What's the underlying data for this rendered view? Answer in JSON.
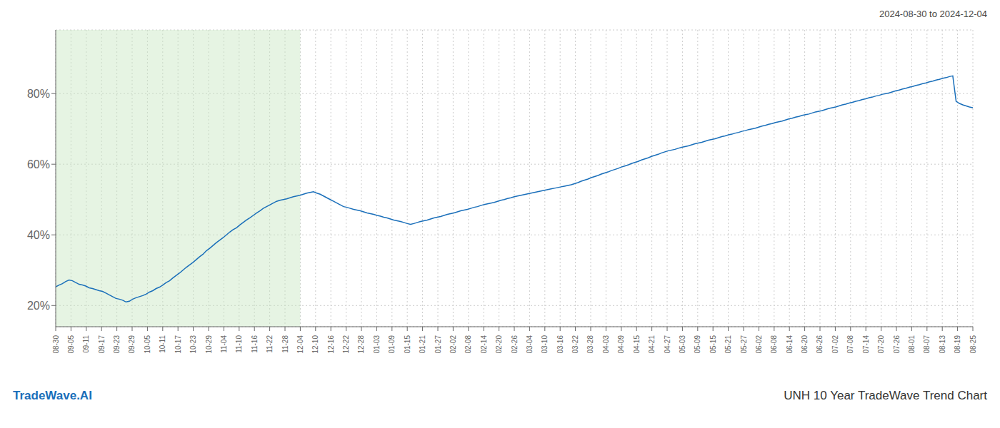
{
  "chart_data": {
    "type": "line",
    "title": "UNH 10 Year TradeWave Trend Chart",
    "subtitle": "2024-08-30 to 2024-12-04",
    "annotations": [
      "TradeWave.AI"
    ],
    "color": "#1a6fba",
    "grid": true,
    "x": [
      0,
      1,
      2,
      3,
      4,
      5,
      6,
      7,
      8,
      9,
      10,
      11,
      12,
      13,
      14,
      15,
      16,
      17,
      18,
      19,
      20,
      21,
      22,
      23,
      24,
      25,
      26,
      27,
      28,
      29,
      30,
      31,
      32,
      33,
      34,
      35,
      36,
      37,
      38,
      39,
      40,
      41,
      42,
      43,
      44,
      45,
      46,
      47,
      48,
      49,
      50,
      51,
      52,
      53,
      54,
      55,
      56,
      57,
      58,
      59,
      60,
      61,
      62,
      63,
      64,
      65,
      66,
      67,
      68,
      69,
      70,
      71,
      72,
      73,
      74,
      75,
      76,
      77,
      78,
      79,
      80,
      81,
      82,
      83,
      84,
      85,
      86,
      87,
      88,
      89,
      90,
      91,
      92,
      93,
      94,
      95,
      96,
      97,
      98,
      99,
      100,
      101,
      102,
      103,
      104,
      105,
      106,
      107,
      108,
      109,
      110,
      111,
      112,
      113,
      114,
      115,
      116,
      117,
      118,
      119,
      120,
      121,
      122,
      123,
      124,
      125,
      126,
      127,
      128,
      129,
      130,
      131,
      132,
      133,
      134,
      135,
      136,
      137,
      138,
      139,
      140,
      141,
      142,
      143,
      144,
      145,
      146,
      147,
      148,
      149,
      150,
      151,
      152,
      153,
      154,
      155,
      156,
      157,
      158,
      159,
      160,
      161,
      162,
      163,
      164,
      165,
      166,
      167,
      168,
      169,
      170,
      171,
      172,
      173,
      174,
      175,
      176,
      177,
      178,
      179,
      180,
      181,
      182,
      183,
      184,
      185,
      186,
      187,
      188,
      189,
      190,
      191,
      192,
      193,
      194,
      195,
      196,
      197,
      198,
      199,
      200,
      201,
      202,
      203,
      204,
      205,
      206,
      207,
      208,
      209,
      210,
      211,
      212,
      213,
      214,
      215,
      216,
      217,
      218,
      219,
      220,
      221,
      222,
      223,
      224,
      225,
      226,
      227,
      228,
      229,
      230,
      231,
      232,
      233,
      234,
      235,
      236,
      237,
      238,
      239,
      240,
      241,
      242,
      243,
      244,
      245,
      246,
      247,
      248,
      249,
      250,
      251,
      252,
      253,
      254,
      255,
      256,
      257,
      258,
      259,
      260,
      261,
      262,
      263,
      264,
      265,
      266,
      267,
      268,
      269,
      270,
      271,
      272,
      273,
      274
    ],
    "values": [
      0.253,
      0.258,
      0.262,
      0.268,
      0.272,
      0.27,
      0.265,
      0.26,
      0.258,
      0.255,
      0.25,
      0.248,
      0.245,
      0.242,
      0.24,
      0.235,
      0.23,
      0.225,
      0.22,
      0.218,
      0.215,
      0.21,
      0.212,
      0.218,
      0.222,
      0.225,
      0.228,
      0.232,
      0.238,
      0.242,
      0.248,
      0.252,
      0.258,
      0.265,
      0.27,
      0.278,
      0.285,
      0.292,
      0.3,
      0.308,
      0.315,
      0.322,
      0.33,
      0.338,
      0.345,
      0.355,
      0.362,
      0.37,
      0.378,
      0.385,
      0.392,
      0.4,
      0.408,
      0.415,
      0.42,
      0.428,
      0.435,
      0.442,
      0.448,
      0.455,
      0.462,
      0.468,
      0.475,
      0.48,
      0.485,
      0.49,
      0.495,
      0.498,
      0.5,
      0.502,
      0.505,
      0.508,
      0.51,
      0.512,
      0.515,
      0.518,
      0.52,
      0.522,
      0.518,
      0.515,
      0.51,
      0.505,
      0.5,
      0.495,
      0.49,
      0.485,
      0.48,
      0.478,
      0.475,
      0.472,
      0.47,
      0.468,
      0.465,
      0.462,
      0.46,
      0.458,
      0.455,
      0.453,
      0.45,
      0.448,
      0.445,
      0.442,
      0.44,
      0.438,
      0.435,
      0.432,
      0.43,
      0.432,
      0.435,
      0.438,
      0.44,
      0.442,
      0.445,
      0.448,
      0.45,
      0.452,
      0.455,
      0.458,
      0.46,
      0.462,
      0.465,
      0.468,
      0.47,
      0.472,
      0.475,
      0.478,
      0.48,
      0.483,
      0.486,
      0.488,
      0.49,
      0.492,
      0.495,
      0.498,
      0.5,
      0.503,
      0.505,
      0.508,
      0.51,
      0.512,
      0.514,
      0.516,
      0.518,
      0.52,
      0.522,
      0.524,
      0.526,
      0.528,
      0.53,
      0.532,
      0.534,
      0.536,
      0.538,
      0.54,
      0.542,
      0.545,
      0.548,
      0.552,
      0.555,
      0.558,
      0.562,
      0.565,
      0.568,
      0.572,
      0.575,
      0.578,
      0.582,
      0.585,
      0.588,
      0.592,
      0.595,
      0.598,
      0.602,
      0.605,
      0.608,
      0.612,
      0.615,
      0.618,
      0.622,
      0.625,
      0.628,
      0.632,
      0.635,
      0.638,
      0.64,
      0.642,
      0.645,
      0.648,
      0.65,
      0.652,
      0.655,
      0.658,
      0.66,
      0.662,
      0.665,
      0.668,
      0.67,
      0.672,
      0.675,
      0.678,
      0.68,
      0.683,
      0.685,
      0.688,
      0.69,
      0.693,
      0.695,
      0.698,
      0.7,
      0.702,
      0.705,
      0.708,
      0.71,
      0.713,
      0.715,
      0.718,
      0.72,
      0.722,
      0.725,
      0.728,
      0.73,
      0.733,
      0.735,
      0.738,
      0.74,
      0.742,
      0.745,
      0.748,
      0.75,
      0.752,
      0.755,
      0.758,
      0.76,
      0.762,
      0.765,
      0.768,
      0.77,
      0.773,
      0.775,
      0.778,
      0.78,
      0.783,
      0.785,
      0.788,
      0.79,
      0.793,
      0.795,
      0.798,
      0.8,
      0.802,
      0.805,
      0.808,
      0.81,
      0.813,
      0.815,
      0.818,
      0.82,
      0.823,
      0.825,
      0.828,
      0.83,
      0.833,
      0.835,
      0.838,
      0.84,
      0.843,
      0.845,
      0.848,
      0.85,
      0.778,
      0.772,
      0.768,
      0.765,
      0.762,
      0.76
    ],
    "xlim": [
      0,
      274
    ],
    "xticks": [
      {
        "value": 0,
        "label": "08-30"
      },
      {
        "value": 4.5667,
        "label": "09-05"
      },
      {
        "value": 9.1333,
        "label": "09-11"
      },
      {
        "value": 13.7,
        "label": "09-17"
      },
      {
        "value": 18.2667,
        "label": "09-23"
      },
      {
        "value": 22.8333,
        "label": "09-29"
      },
      {
        "value": 27.4,
        "label": "10-05"
      },
      {
        "value": 31.9667,
        "label": "10-11"
      },
      {
        "value": 36.5333,
        "label": "10-17"
      },
      {
        "value": 41.1,
        "label": "10-23"
      },
      {
        "value": 45.6667,
        "label": "10-29"
      },
      {
        "value": 50.2333,
        "label": "11-04"
      },
      {
        "value": 54.8,
        "label": "11-10"
      },
      {
        "value": 59.3667,
        "label": "11-16"
      },
      {
        "value": 63.9333,
        "label": "11-22"
      },
      {
        "value": 68.5,
        "label": "11-28"
      },
      {
        "value": 73.0667,
        "label": "12-04"
      },
      {
        "value": 77.6333,
        "label": "12-10"
      },
      {
        "value": 82.2,
        "label": "12-16"
      },
      {
        "value": 86.7667,
        "label": "12-22"
      },
      {
        "value": 91.3333,
        "label": "12-28"
      },
      {
        "value": 95.9,
        "label": "01-03"
      },
      {
        "value": 100.4667,
        "label": "01-09"
      },
      {
        "value": 105.0333,
        "label": "01-15"
      },
      {
        "value": 109.6,
        "label": "01-21"
      },
      {
        "value": 114.1667,
        "label": "01-27"
      },
      {
        "value": 118.7333,
        "label": "02-02"
      },
      {
        "value": 123.3,
        "label": "02-08"
      },
      {
        "value": 127.8667,
        "label": "02-14"
      },
      {
        "value": 132.4333,
        "label": "02-20"
      },
      {
        "value": 137,
        "label": "02-26"
      },
      {
        "value": 141.5667,
        "label": "03-04"
      },
      {
        "value": 146.1333,
        "label": "03-10"
      },
      {
        "value": 150.7,
        "label": "03-16"
      },
      {
        "value": 155.2667,
        "label": "03-22"
      },
      {
        "value": 159.8333,
        "label": "03-28"
      },
      {
        "value": 164.4,
        "label": "04-03"
      },
      {
        "value": 168.9667,
        "label": "04-09"
      },
      {
        "value": 173.5333,
        "label": "04-15"
      },
      {
        "value": 178.1,
        "label": "04-21"
      },
      {
        "value": 182.6667,
        "label": "04-27"
      },
      {
        "value": 187.2333,
        "label": "05-03"
      },
      {
        "value": 191.8,
        "label": "05-09"
      },
      {
        "value": 196.3667,
        "label": "05-15"
      },
      {
        "value": 200.9333,
        "label": "05-21"
      },
      {
        "value": 205.5,
        "label": "05-27"
      },
      {
        "value": 210.0667,
        "label": "06-02"
      },
      {
        "value": 214.6333,
        "label": "06-08"
      },
      {
        "value": 219.2,
        "label": "06-14"
      },
      {
        "value": 223.7667,
        "label": "06-20"
      },
      {
        "value": 228.3333,
        "label": "06-26"
      },
      {
        "value": 232.9,
        "label": "07-02"
      },
      {
        "value": 237.4667,
        "label": "07-08"
      },
      {
        "value": 242.0333,
        "label": "07-14"
      },
      {
        "value": 246.6,
        "label": "07-20"
      },
      {
        "value": 251.1667,
        "label": "07-26"
      },
      {
        "value": 255.7333,
        "label": "08-01"
      },
      {
        "value": 260.3,
        "label": "08-07"
      },
      {
        "value": 264.8667,
        "label": "08-13"
      },
      {
        "value": 269.4333,
        "label": "08-19"
      },
      {
        "value": 274,
        "label": "08-25"
      }
    ],
    "ylim": [
      0.14,
      0.98
    ],
    "yticks": [
      {
        "value": 0.2,
        "label": "20%"
      },
      {
        "value": 0.4,
        "label": "40%"
      },
      {
        "value": 0.6,
        "label": "60%"
      },
      {
        "value": 0.8,
        "label": "80%"
      }
    ],
    "shade": {
      "x": [
        0,
        73.0667
      ],
      "color": "#c8e6c0"
    }
  }
}
